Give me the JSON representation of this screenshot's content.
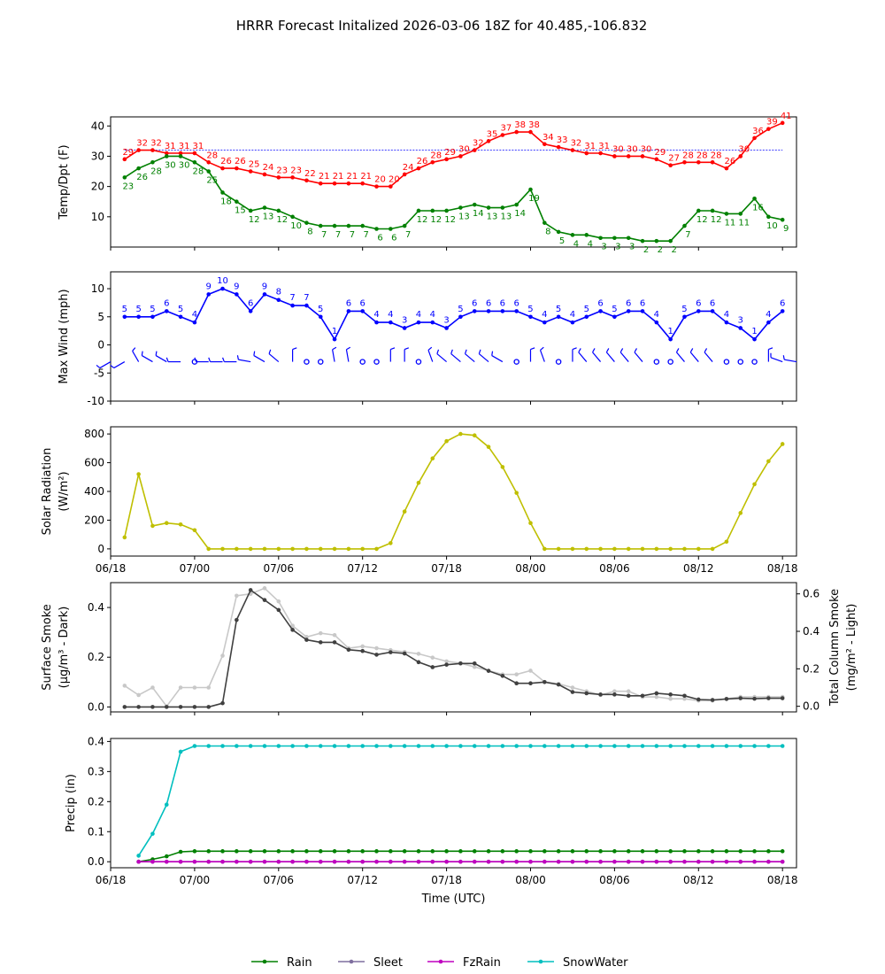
{
  "title": "HRRR Forecast Initalized 2026-03-06 18Z for 40.485,-106.832",
  "time_axis": {
    "label": "Time (UTC)",
    "ticks": [
      {
        "h": 0,
        "label": "06/18"
      },
      {
        "h": 6,
        "label": "07/00"
      },
      {
        "h": 12,
        "label": "07/06"
      },
      {
        "h": 18,
        "label": "07/12"
      },
      {
        "h": 24,
        "label": "07/18"
      },
      {
        "h": 30,
        "label": "08/00"
      },
      {
        "h": 36,
        "label": "08/06"
      },
      {
        "h": 42,
        "label": "08/12"
      },
      {
        "h": 48,
        "label": "08/18"
      }
    ],
    "range": [
      0,
      49
    ]
  },
  "chart_data": [
    {
      "type": "line",
      "id": "temp",
      "ylabel": "Temp/Dpt (F)",
      "ylim": [
        0,
        43
      ],
      "yticks": [
        10,
        20,
        30,
        40
      ],
      "reference_line": 32,
      "x": [
        1,
        2,
        3,
        4,
        5,
        6,
        7,
        8,
        9,
        10,
        11,
        12,
        13,
        14,
        15,
        16,
        17,
        18,
        19,
        20,
        21,
        22,
        23,
        24,
        25,
        26,
        27,
        28,
        29,
        30,
        31,
        32,
        33,
        34,
        35,
        36,
        37,
        38,
        39,
        40,
        41,
        42,
        43,
        44,
        45,
        46,
        47,
        48
      ],
      "series": [
        {
          "name": "Temperature",
          "color": "#ff0000",
          "values": [
            29,
            32,
            32,
            31,
            31,
            31,
            28,
            26,
            26,
            25,
            24,
            23,
            23,
            22,
            21,
            21,
            21,
            21,
            20,
            20,
            24,
            26,
            28,
            29,
            30,
            32,
            35,
            37,
            38,
            38,
            34,
            33,
            32,
            31,
            31,
            30,
            30,
            30,
            29,
            27,
            28,
            28,
            28,
            26,
            30,
            36,
            39,
            41
          ]
        },
        {
          "name": "Dewpoint",
          "color": "#008000",
          "values": [
            23,
            26,
            28,
            30,
            30,
            28,
            25,
            18,
            15,
            12,
            13,
            12,
            10,
            8,
            7,
            7,
            7,
            7,
            6,
            6,
            7,
            12,
            12,
            12,
            13,
            14,
            13,
            13,
            14,
            19,
            8,
            5,
            4,
            4,
            3,
            3,
            3,
            2,
            2,
            2,
            7,
            12,
            12,
            11,
            11,
            16,
            10,
            9
          ]
        }
      ]
    },
    {
      "type": "line",
      "id": "wind",
      "ylabel": "Max Wind (mph)",
      "ylim": [
        -10,
        13
      ],
      "yticks": [
        -10,
        -5,
        0,
        5,
        10
      ],
      "x": [
        1,
        2,
        3,
        4,
        5,
        6,
        7,
        8,
        9,
        10,
        11,
        12,
        13,
        14,
        15,
        16,
        17,
        18,
        19,
        20,
        21,
        22,
        23,
        24,
        25,
        26,
        27,
        28,
        29,
        30,
        31,
        32,
        33,
        34,
        35,
        36,
        37,
        38,
        39,
        40,
        41,
        42,
        43,
        44,
        45,
        46,
        47,
        48
      ],
      "series": [
        {
          "name": "Max Wind",
          "color": "#0000ff",
          "values": [
            5,
            5,
            5,
            6,
            5,
            4,
            9,
            10,
            9,
            6,
            9,
            8,
            7,
            7,
            5,
            1,
            6,
            6,
            4,
            4,
            3,
            4,
            4,
            3,
            5,
            6,
            6,
            6,
            6,
            5,
            4,
            5,
            4,
            5,
            6,
            5,
            6,
            6,
            4,
            1,
            5,
            6,
            6,
            4,
            3,
            1,
            4,
            6
          ]
        }
      ],
      "barbs": {
        "level": -3,
        "hours": [
          0,
          1,
          2,
          3,
          4,
          5,
          6,
          7,
          8,
          9,
          10,
          11,
          12,
          13,
          14,
          15,
          16,
          17,
          18,
          19,
          20,
          21,
          22,
          23,
          24,
          25,
          26,
          27,
          28,
          29,
          30,
          31,
          32,
          33,
          34,
          35,
          36,
          37,
          38,
          39,
          40,
          41,
          42,
          43,
          44,
          45,
          46,
          47,
          48,
          49
        ],
        "direction_deg": [
          240,
          240,
          330,
          300,
          300,
          270,
          270,
          270,
          270,
          270,
          280,
          300,
          310,
          0,
          0,
          0,
          350,
          350,
          0,
          0,
          0,
          0,
          0,
          340,
          310,
          310,
          310,
          310,
          300,
          300,
          0,
          340,
          340,
          0,
          320,
          320,
          320,
          320,
          320,
          0,
          0,
          320,
          320,
          320,
          0,
          0,
          0,
          0,
          290,
          280
        ],
        "calm": [
          false,
          false,
          false,
          false,
          false,
          false,
          true,
          false,
          false,
          false,
          false,
          false,
          false,
          false,
          true,
          true,
          false,
          false,
          true,
          true,
          false,
          false,
          true,
          false,
          false,
          false,
          false,
          false,
          false,
          true,
          false,
          false,
          true,
          false,
          false,
          false,
          false,
          false,
          false,
          true,
          true,
          false,
          false,
          false,
          true,
          true,
          true,
          false,
          false,
          false
        ]
      }
    },
    {
      "type": "line",
      "id": "solar",
      "ylabel": "Solar Radiation",
      "ylabel2": "(W/m²)",
      "ylim": [
        -50,
        850
      ],
      "yticks": [
        0,
        200,
        400,
        600,
        800
      ],
      "x": [
        1,
        2,
        3,
        4,
        5,
        6,
        7,
        8,
        9,
        10,
        11,
        12,
        13,
        14,
        15,
        16,
        17,
        18,
        19,
        20,
        21,
        22,
        23,
        24,
        25,
        26,
        27,
        28,
        29,
        30,
        31,
        32,
        33,
        34,
        35,
        36,
        37,
        38,
        39,
        40,
        41,
        42,
        43,
        44,
        45,
        46,
        47,
        48
      ],
      "series": [
        {
          "name": "Solar Radiation",
          "color": "#bfbf00",
          "values": [
            80,
            520,
            160,
            180,
            170,
            130,
            0,
            0,
            0,
            0,
            0,
            0,
            0,
            0,
            0,
            0,
            0,
            0,
            0,
            40,
            260,
            460,
            630,
            750,
            800,
            790,
            710,
            570,
            390,
            180,
            0,
            0,
            0,
            0,
            0,
            0,
            0,
            0,
            0,
            0,
            0,
            0,
            0,
            50,
            250,
            450,
            610,
            730
          ]
        }
      ]
    },
    {
      "type": "line",
      "id": "smoke",
      "ylabel": "Surface Smoke",
      "ylabel2": "(μg/m³ - Dark)",
      "ylabel_right": "Total Column Smoke",
      "ylabel_right2": "(mg/m² - Light)",
      "ylim": [
        -0.02,
        0.5
      ],
      "yticks": [
        0.0,
        0.2,
        0.4
      ],
      "yticks_labels": [
        "0.0",
        "0.2",
        "0.4"
      ],
      "ylim_right": [
        -0.03,
        0.66
      ],
      "yticks_right": [
        0.0,
        0.2,
        0.4,
        0.6
      ],
      "yticks_right_labels": [
        "0.0",
        "0.2",
        "0.4",
        "0.6"
      ],
      "x": [
        1,
        2,
        3,
        4,
        5,
        6,
        7,
        8,
        9,
        10,
        11,
        12,
        13,
        14,
        15,
        16,
        17,
        18,
        19,
        20,
        21,
        22,
        23,
        24,
        25,
        26,
        27,
        28,
        29,
        30,
        31,
        32,
        33,
        34,
        35,
        36,
        37,
        38,
        39,
        40,
        41,
        42,
        43,
        44,
        45,
        46,
        47,
        48
      ],
      "series": [
        {
          "name": "Surface Smoke",
          "color": "#404040",
          "axis": "left",
          "values": [
            0,
            0,
            0,
            0,
            0,
            0,
            0,
            0.015,
            0.35,
            0.47,
            0.43,
            0.39,
            0.31,
            0.27,
            0.26,
            0.26,
            0.23,
            0.225,
            0.21,
            0.22,
            0.215,
            0.18,
            0.16,
            0.17,
            0.175,
            0.175,
            0.145,
            0.125,
            0.095,
            0.095,
            0.1,
            0.09,
            0.06,
            0.055,
            0.05,
            0.05,
            0.045,
            0.045,
            0.055,
            0.05,
            0.045,
            0.03,
            0.028,
            0.032,
            0.035,
            0.033,
            0.035,
            0.035
          ]
        },
        {
          "name": "Total Column Smoke",
          "color": "#c8c8c8",
          "axis": "right",
          "values": [
            0.11,
            0.06,
            0.1,
            0.0,
            0.1,
            0.1,
            0.1,
            0.27,
            0.59,
            0.6,
            0.63,
            0.56,
            0.43,
            0.37,
            0.39,
            0.38,
            0.31,
            0.32,
            0.31,
            0.3,
            0.29,
            0.28,
            0.26,
            0.24,
            0.23,
            0.21,
            0.19,
            0.17,
            0.17,
            0.19,
            0.13,
            0.12,
            0.1,
            0.08,
            0.06,
            0.08,
            0.08,
            0.05,
            0.05,
            0.04,
            0.04,
            0.03,
            0.03,
            0.04,
            0.05,
            0.05,
            0.05,
            0.05
          ]
        }
      ]
    },
    {
      "type": "line",
      "id": "precip",
      "ylabel": "Precip (in)",
      "ylim": [
        -0.02,
        0.41
      ],
      "yticks": [
        0.0,
        0.1,
        0.2,
        0.3,
        0.4
      ],
      "yticks_labels": [
        "0.0",
        "0.1",
        "0.2",
        "0.3",
        "0.4"
      ],
      "x": [
        2,
        3,
        4,
        5,
        6,
        7,
        8,
        9,
        10,
        11,
        12,
        13,
        14,
        15,
        16,
        17,
        18,
        19,
        20,
        21,
        22,
        23,
        24,
        25,
        26,
        27,
        28,
        29,
        30,
        31,
        32,
        33,
        34,
        35,
        36,
        37,
        38,
        39,
        40,
        41,
        42,
        43,
        44,
        45,
        46,
        47,
        48
      ],
      "series": [
        {
          "name": "Rain",
          "color": "#008000",
          "values": [
            0.0,
            0.008,
            0.018,
            0.033,
            0.035,
            0.035,
            0.035,
            0.035,
            0.035,
            0.035,
            0.035,
            0.035,
            0.035,
            0.035,
            0.035,
            0.035,
            0.035,
            0.035,
            0.035,
            0.035,
            0.035,
            0.035,
            0.035,
            0.035,
            0.035,
            0.035,
            0.035,
            0.035,
            0.035,
            0.035,
            0.035,
            0.035,
            0.035,
            0.035,
            0.035,
            0.035,
            0.035,
            0.035,
            0.035,
            0.035,
            0.035,
            0.035,
            0.035,
            0.035,
            0.035,
            0.035,
            0.035
          ]
        },
        {
          "name": "Sleet",
          "color": "#7f6f9f",
          "values": [
            0,
            0,
            0,
            0,
            0,
            0,
            0,
            0,
            0,
            0,
            0,
            0,
            0,
            0,
            0,
            0,
            0,
            0,
            0,
            0,
            0,
            0,
            0,
            0,
            0,
            0,
            0,
            0,
            0,
            0,
            0,
            0,
            0,
            0,
            0,
            0,
            0,
            0,
            0,
            0,
            0,
            0,
            0,
            0,
            0,
            0,
            0
          ]
        },
        {
          "name": "FzRain",
          "color": "#bf00bf",
          "values": [
            0,
            0,
            0,
            0,
            0,
            0,
            0,
            0,
            0,
            0,
            0,
            0,
            0,
            0,
            0,
            0,
            0,
            0,
            0,
            0,
            0,
            0,
            0,
            0,
            0,
            0,
            0,
            0,
            0,
            0,
            0,
            0,
            0,
            0,
            0,
            0,
            0,
            0,
            0,
            0,
            0,
            0,
            0,
            0,
            0,
            0,
            0
          ]
        },
        {
          "name": "SnowWater",
          "color": "#00bfbf",
          "values": [
            0.02,
            0.093,
            0.19,
            0.366,
            0.385,
            0.385,
            0.385,
            0.385,
            0.385,
            0.385,
            0.385,
            0.385,
            0.385,
            0.385,
            0.385,
            0.385,
            0.385,
            0.385,
            0.385,
            0.385,
            0.385,
            0.385,
            0.385,
            0.385,
            0.385,
            0.385,
            0.385,
            0.385,
            0.385,
            0.385,
            0.385,
            0.385,
            0.385,
            0.385,
            0.385,
            0.385,
            0.385,
            0.385,
            0.385,
            0.385,
            0.385,
            0.385,
            0.385,
            0.385,
            0.385,
            0.385,
            0.385
          ]
        }
      ]
    }
  ],
  "legend": [
    {
      "name": "Rain",
      "color": "#008000"
    },
    {
      "name": "Sleet",
      "color": "#7f6f9f"
    },
    {
      "name": "FzRain",
      "color": "#bf00bf"
    },
    {
      "name": "SnowWater",
      "color": "#00bfbf"
    }
  ]
}
